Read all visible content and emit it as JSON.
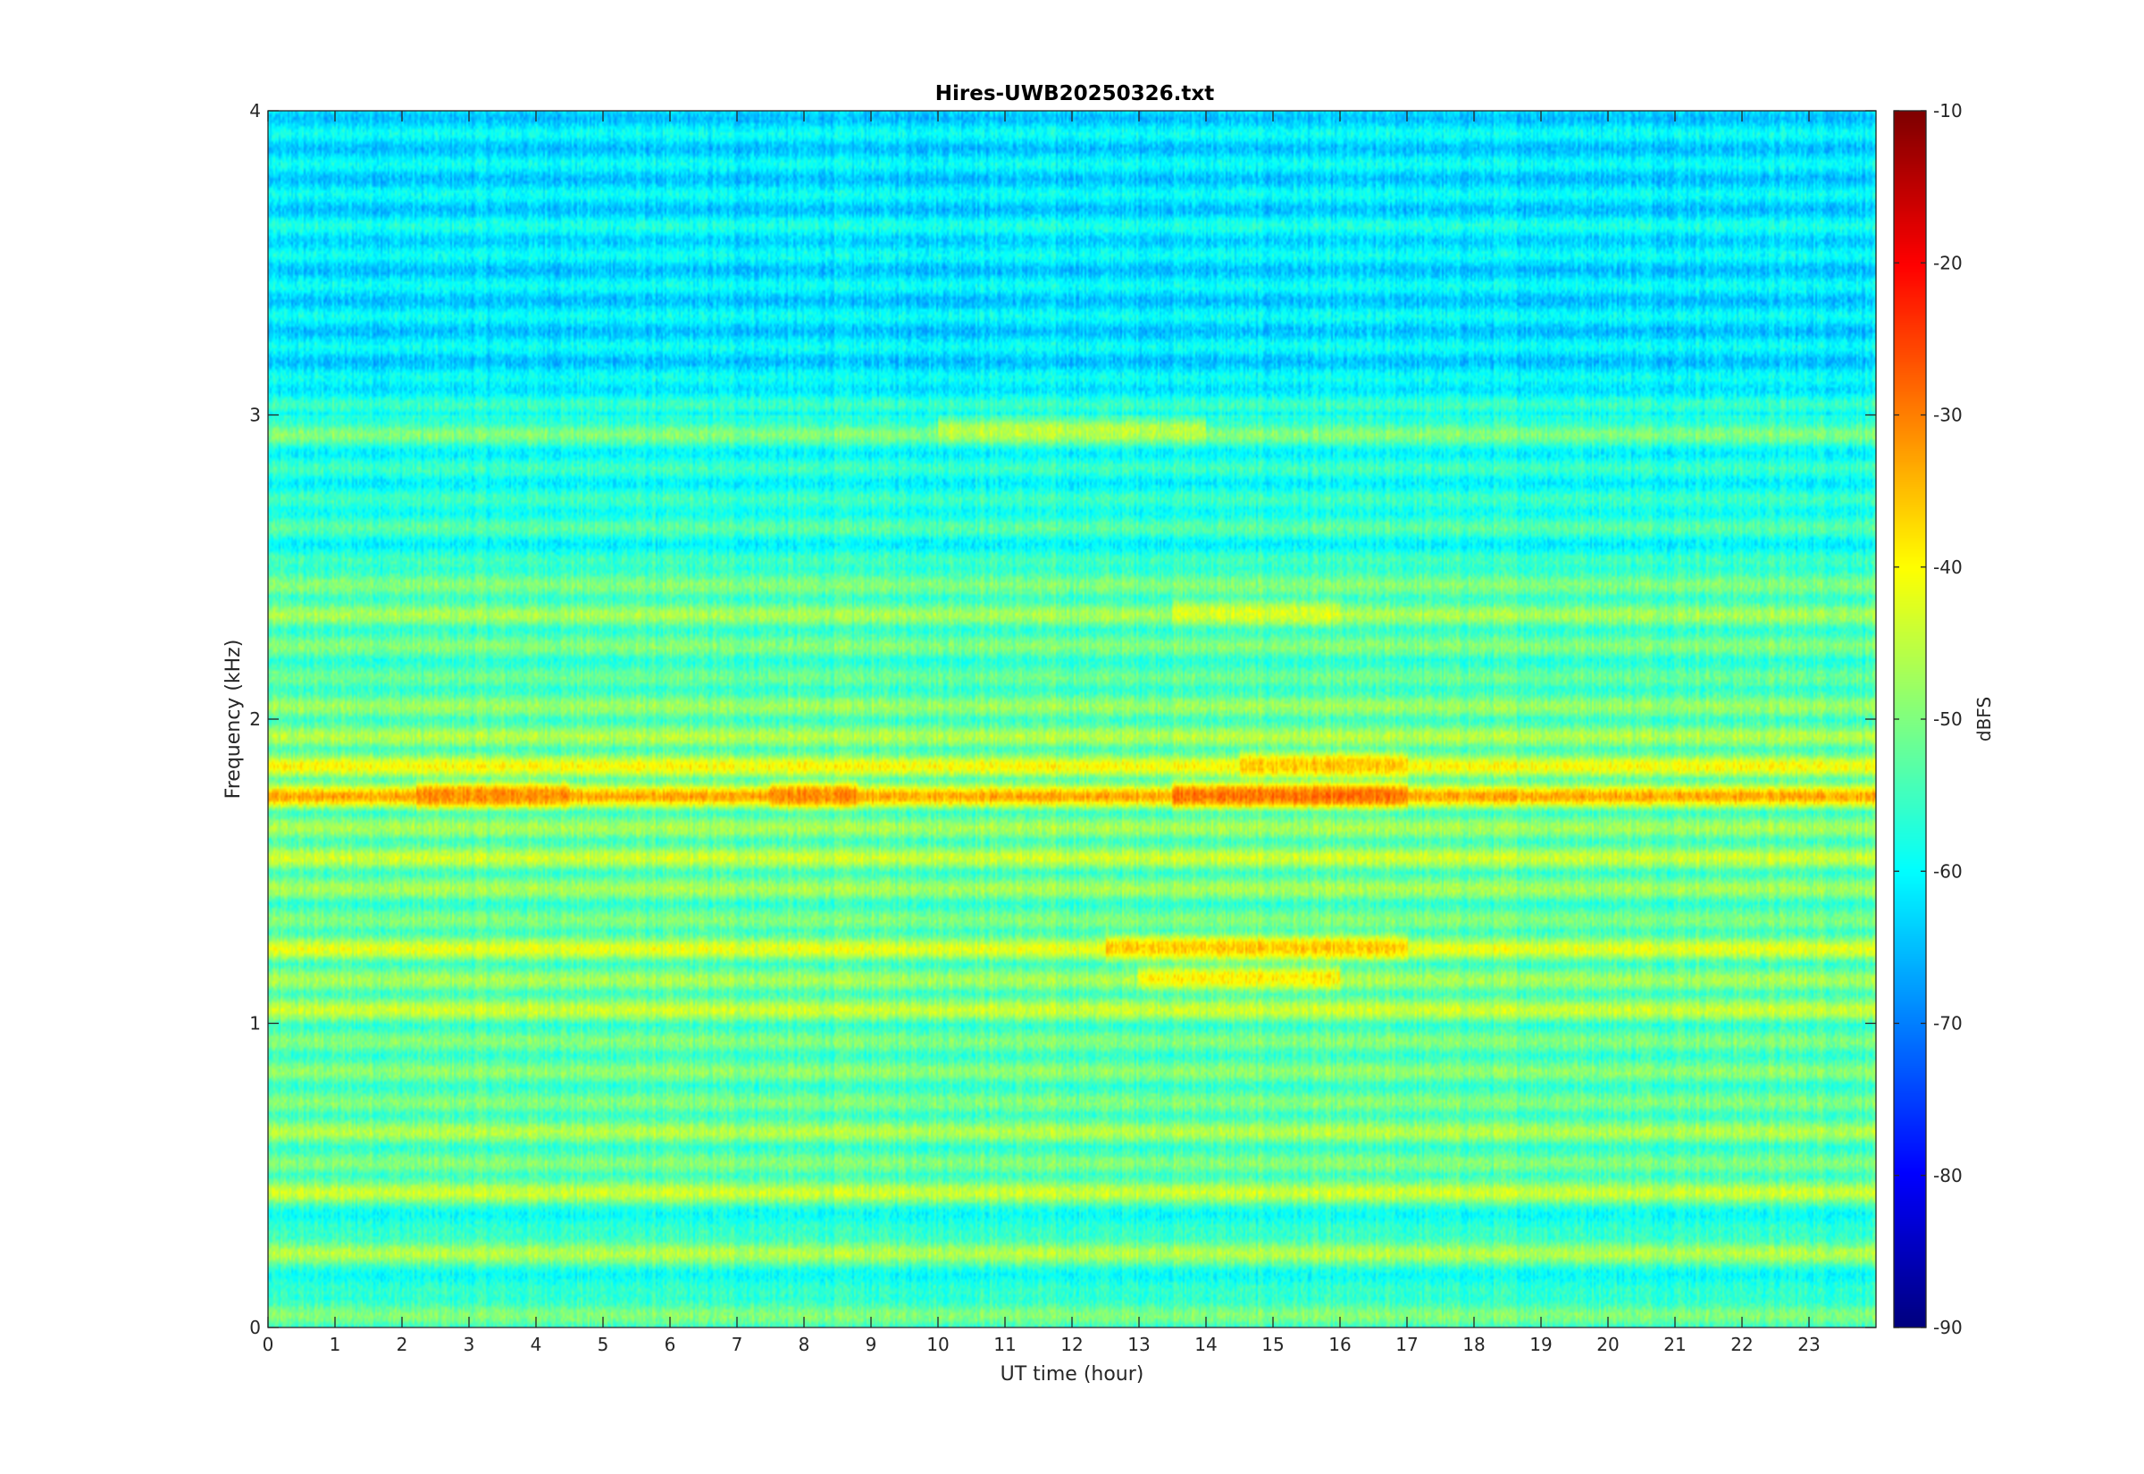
{
  "chart_data": {
    "type": "heatmap",
    "title": "Hires-UWB20250326.txt",
    "xlabel": "UT time (hour)",
    "ylabel": "Frequency (kHz)",
    "xlim": [
      0,
      24
    ],
    "ylim": [
      0,
      4
    ],
    "x_ticks": [
      "0",
      "1",
      "2",
      "3",
      "4",
      "5",
      "6",
      "7",
      "8",
      "9",
      "10",
      "11",
      "12",
      "13",
      "14",
      "15",
      "16",
      "17",
      "18",
      "19",
      "20",
      "21",
      "22",
      "23"
    ],
    "y_ticks": [
      "0",
      "1",
      "2",
      "3",
      "4"
    ],
    "colorbar": {
      "label": "dBFS",
      "colormap": "jet",
      "range": [
        -90,
        -10
      ],
      "ticks": [
        "-10",
        "-20",
        "-30",
        "-40",
        "-50",
        "-60",
        "-70",
        "-80",
        "-90"
      ]
    },
    "background_level_dBFS": -58,
    "bands": [
      {
        "freq_khz": 0.05,
        "level_dBFS": -50
      },
      {
        "freq_khz": 0.12,
        "level_dBFS": -74
      },
      {
        "freq_khz": 0.25,
        "level_dBFS": -46
      },
      {
        "freq_khz": 0.45,
        "level_dBFS": -44
      },
      {
        "freq_khz": 0.55,
        "level_dBFS": -50
      },
      {
        "freq_khz": 0.65,
        "level_dBFS": -46
      },
      {
        "freq_khz": 0.75,
        "level_dBFS": -50
      },
      {
        "freq_khz": 0.85,
        "level_dBFS": -49
      },
      {
        "freq_khz": 0.95,
        "level_dBFS": -50
      },
      {
        "freq_khz": 1.05,
        "level_dBFS": -44
      },
      {
        "freq_khz": 1.15,
        "level_dBFS": -47
      },
      {
        "freq_khz": 1.25,
        "level_dBFS": -42
      },
      {
        "freq_khz": 1.35,
        "level_dBFS": -50
      },
      {
        "freq_khz": 1.45,
        "level_dBFS": -47
      },
      {
        "freq_khz": 1.55,
        "level_dBFS": -44
      },
      {
        "freq_khz": 1.65,
        "level_dBFS": -47
      },
      {
        "freq_khz": 1.75,
        "level_dBFS": -33
      },
      {
        "freq_khz": 1.85,
        "level_dBFS": -40
      },
      {
        "freq_khz": 1.95,
        "level_dBFS": -46
      },
      {
        "freq_khz": 2.05,
        "level_dBFS": -48
      },
      {
        "freq_khz": 2.15,
        "level_dBFS": -52
      },
      {
        "freq_khz": 2.25,
        "level_dBFS": -50
      },
      {
        "freq_khz": 2.35,
        "level_dBFS": -47
      },
      {
        "freq_khz": 2.45,
        "level_dBFS": -50
      },
      {
        "freq_khz": 2.65,
        "level_dBFS": -55
      },
      {
        "freq_khz": 2.95,
        "level_dBFS": -51
      },
      {
        "freq_khz": 3.05,
        "level_dBFS": -53
      },
      {
        "freq_khz": 3.6,
        "level_dBFS": -56
      }
    ],
    "hotspots": [
      {
        "freq_khz": 1.75,
        "time_start_h": 13.5,
        "time_end_h": 17,
        "level_dBFS": -29
      },
      {
        "freq_khz": 1.75,
        "time_start_h": 2.2,
        "time_end_h": 4.5,
        "level_dBFS": -31
      },
      {
        "freq_khz": 1.75,
        "time_start_h": 7.5,
        "time_end_h": 8.8,
        "level_dBFS": -31
      },
      {
        "freq_khz": 1.85,
        "time_start_h": 14.5,
        "time_end_h": 17,
        "level_dBFS": -36
      },
      {
        "freq_khz": 1.25,
        "time_start_h": 12.5,
        "time_end_h": 17,
        "level_dBFS": -36
      },
      {
        "freq_khz": 1.15,
        "time_start_h": 13,
        "time_end_h": 16,
        "level_dBFS": -39
      },
      {
        "freq_khz": 2.35,
        "time_start_h": 13.5,
        "time_end_h": 16,
        "level_dBFS": -43
      },
      {
        "freq_khz": 2.95,
        "time_start_h": 10,
        "time_end_h": 14,
        "level_dBFS": -45
      }
    ]
  }
}
